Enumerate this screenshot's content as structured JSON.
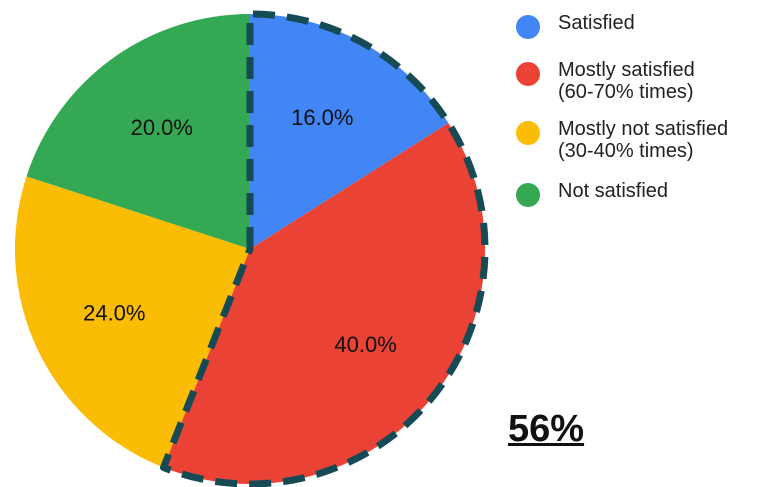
{
  "chart_data": {
    "type": "pie",
    "start_angle_deg": 0,
    "direction": "clockwise",
    "slices": [
      {
        "name": "Satisfied",
        "value": 16.0,
        "label": "16.0%",
        "color": "#4285f4"
      },
      {
        "name": "Mostly satisfied (60-70% times)",
        "value": 40.0,
        "label": "40.0%",
        "color": "#ea4335"
      },
      {
        "name": "Mostly not satisfied (30-40% times)",
        "value": 24.0,
        "label": "24.0%",
        "color": "#fbbc04"
      },
      {
        "name": "Not satisfied",
        "value": 20.0,
        "label": "20.0%",
        "color": "#34a853"
      }
    ],
    "highlight": {
      "slices": [
        0,
        1
      ],
      "style": "dashed outline",
      "color": "#164b55"
    },
    "legend_position": "right",
    "legend": [
      {
        "lines": [
          "Satisfied"
        ],
        "color": "#4285f4"
      },
      {
        "lines": [
          "Mostly satisfied",
          "(60-70% times)"
        ],
        "color": "#ea4335"
      },
      {
        "lines": [
          "Mostly not satisfied",
          "(30-40% times)"
        ],
        "color": "#fbbc04"
      },
      {
        "lines": [
          "Not satisfied"
        ],
        "color": "#34a853"
      }
    ],
    "annotation": "56%"
  }
}
